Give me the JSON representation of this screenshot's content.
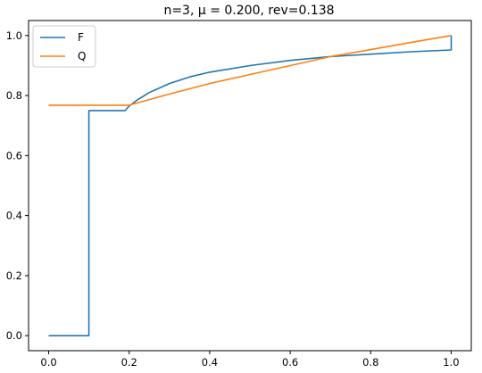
{
  "chart_data": {
    "type": "line",
    "title": "n=3, μ = 0.200, rev=0.138",
    "xlabel": "",
    "ylabel": "",
    "xlim": [
      -0.05,
      1.05
    ],
    "ylim": [
      -0.05,
      1.05
    ],
    "xticks": [
      0.0,
      0.2,
      0.4,
      0.6,
      0.8,
      1.0
    ],
    "xtick_labels": [
      "0.0",
      "0.2",
      "0.4",
      "0.6",
      "0.8",
      "1.0"
    ],
    "yticks": [
      0.0,
      0.2,
      0.4,
      0.6,
      0.8,
      1.0
    ],
    "ytick_labels": [
      "0.0",
      "0.2",
      "0.4",
      "0.6",
      "0.8",
      "1.0"
    ],
    "grid": false,
    "legend_position": "top-left",
    "series": [
      {
        "name": "F",
        "color": "#1f77b4",
        "x": [
          0.0,
          0.1,
          0.1,
          0.19,
          0.2,
          0.22,
          0.25,
          0.3,
          0.35,
          0.4,
          0.5,
          0.6,
          0.7,
          0.8,
          0.9,
          1.0,
          1.0
        ],
        "y": [
          0.0,
          0.0,
          0.75,
          0.75,
          0.765,
          0.785,
          0.81,
          0.84,
          0.862,
          0.878,
          0.9,
          0.917,
          0.93,
          0.938,
          0.946,
          0.952,
          1.0
        ]
      },
      {
        "name": "Q",
        "color": "#ff7f0e",
        "x": [
          0.0,
          0.2,
          0.3,
          0.4,
          0.5,
          0.6,
          0.7,
          0.8,
          0.9,
          1.0
        ],
        "y": [
          0.768,
          0.768,
          0.805,
          0.84,
          0.87,
          0.9,
          0.93,
          0.953,
          0.977,
          1.0
        ]
      }
    ]
  }
}
